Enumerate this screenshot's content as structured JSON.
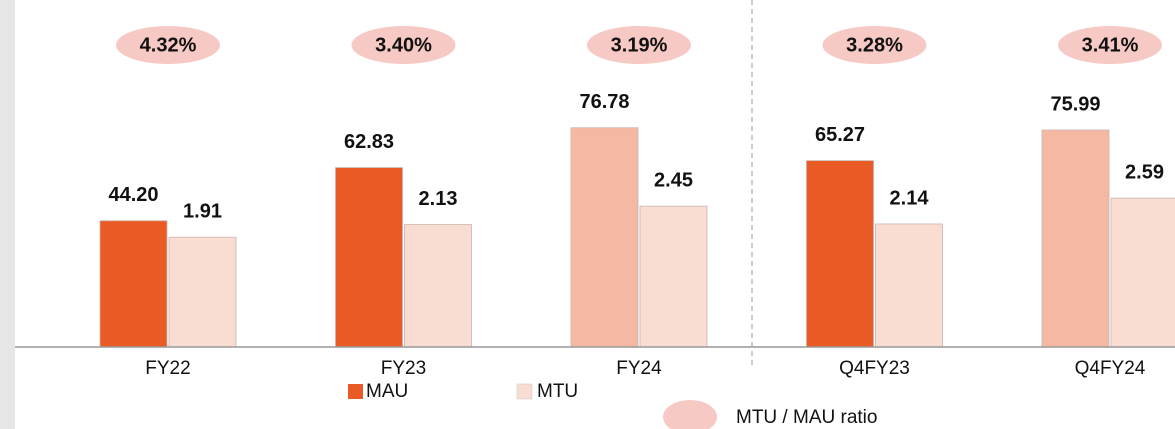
{
  "chart_data": {
    "type": "bar",
    "categories": [
      "FY22",
      "FY23",
      "FY24",
      "Q4FY23",
      "Q4FY24"
    ],
    "ylim": [
      0,
      107.5
    ],
    "y2lim": [
      0,
      5.34
    ],
    "series": [
      {
        "name": "MAU",
        "color": "#e95a24",
        "colors": [
          "#e95a24",
          "#e95a24",
          "#f5b9a3",
          "#e95a24",
          "#f5b9a3"
        ],
        "values": [
          44.2,
          62.83,
          76.78,
          65.27,
          75.99
        ],
        "value_labels": [
          "44.20",
          "62.83",
          "76.78",
          "65.27",
          "75.99"
        ]
      },
      {
        "name": "MTU",
        "color": "#f9ddd3",
        "axis": "y2",
        "values": [
          1.91,
          2.13,
          2.45,
          2.14,
          2.59
        ]
      }
    ],
    "ratio": {
      "name": "MTU / MAU ratio",
      "color": "#f7c9c4",
      "values": [
        4.32,
        3.4,
        3.19,
        3.28,
        3.41
      ],
      "value_labels": [
        "4.32%",
        "3.40%",
        "3.19%",
        "3.28%",
        "3.41%"
      ]
    }
  }
}
